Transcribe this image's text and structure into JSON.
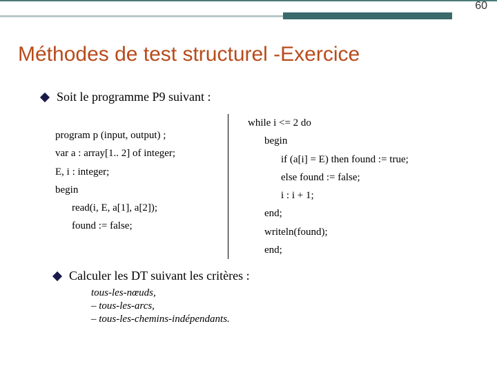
{
  "page_number": "60",
  "title": "Méthodes de test structurel -Exercice",
  "bullet1": "Soit le programme P9 suivant :",
  "code": {
    "left": [
      "program p (input, output) ;",
      "var a : array[1.. 2] of integer;",
      "E, i : integer;",
      "begin",
      "read(i, E, a[1], a[2]);",
      "found := false;"
    ],
    "right": [
      "while i <= 2 do",
      "begin",
      "if (a[i] = E) then found := true;",
      "else found := false;",
      "i :   i + 1;",
      "end;",
      "writeln(found);",
      "end;"
    ]
  },
  "bullet2": "Calculer les DT suivant les critères :",
  "sub": {
    "a": "tous-les-nœuds,",
    "b": "tous-les-arcs,",
    "c": "tous-les-chemins-indépendants."
  },
  "colors": {
    "accent": "#3a6a6a",
    "title": "#b84b1b"
  }
}
